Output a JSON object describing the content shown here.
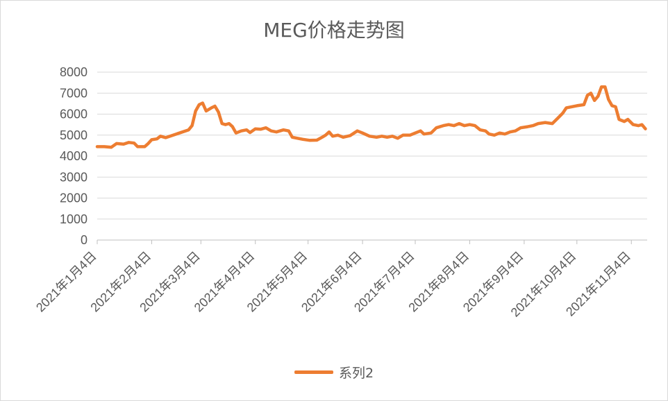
{
  "chart_data": {
    "type": "line",
    "title": "MEG价格走势图",
    "xlabel": "",
    "ylabel": "",
    "ylim": [
      0,
      8000
    ],
    "yticks": [
      "0",
      "1000",
      "2000",
      "3000",
      "4000",
      "5000",
      "6000",
      "7000",
      "8000"
    ],
    "xticks": [
      "2021年1月4日",
      "2021年2月4日",
      "2021年3月4日",
      "2021年4月4日",
      "2021年5月4日",
      "2021年6月4日",
      "2021年7月4日",
      "2021年8月4日",
      "2021年9月4日",
      "2021年10月4日",
      "2021年11月4日"
    ],
    "grid": true,
    "legend_position": "bottom",
    "series": [
      {
        "name": "系列2",
        "color": "#ed7d31",
        "points": [
          [
            "2021-01-04",
            4450
          ],
          [
            "2021-01-08",
            4450
          ],
          [
            "2021-01-12",
            4420
          ],
          [
            "2021-01-15",
            4600
          ],
          [
            "2021-01-19",
            4570
          ],
          [
            "2021-01-22",
            4650
          ],
          [
            "2021-01-25",
            4620
          ],
          [
            "2021-01-27",
            4450
          ],
          [
            "2021-01-31",
            4450
          ],
          [
            "2021-02-02",
            4600
          ],
          [
            "2021-02-04",
            4780
          ],
          [
            "2021-02-07",
            4820
          ],
          [
            "2021-02-09",
            4950
          ],
          [
            "2021-02-12",
            4880
          ],
          [
            "2021-02-18",
            5050
          ],
          [
            "2021-02-25",
            5250
          ],
          [
            "2021-02-27",
            5450
          ],
          [
            "2021-03-01",
            6150
          ],
          [
            "2021-03-03",
            6450
          ],
          [
            "2021-03-05",
            6530
          ],
          [
            "2021-03-07",
            6150
          ],
          [
            "2021-03-10",
            6300
          ],
          [
            "2021-03-12",
            6380
          ],
          [
            "2021-03-14",
            6100
          ],
          [
            "2021-03-16",
            5550
          ],
          [
            "2021-03-18",
            5500
          ],
          [
            "2021-03-20",
            5550
          ],
          [
            "2021-03-22",
            5400
          ],
          [
            "2021-03-24",
            5100
          ],
          [
            "2021-03-27",
            5200
          ],
          [
            "2021-03-30",
            5250
          ],
          [
            "2021-04-01",
            5120
          ],
          [
            "2021-04-04",
            5300
          ],
          [
            "2021-04-07",
            5280
          ],
          [
            "2021-04-10",
            5350
          ],
          [
            "2021-04-13",
            5200
          ],
          [
            "2021-04-16",
            5150
          ],
          [
            "2021-04-20",
            5250
          ],
          [
            "2021-04-23",
            5200
          ],
          [
            "2021-04-25",
            4900
          ],
          [
            "2021-04-28",
            4850
          ],
          [
            "2021-05-01",
            4800
          ],
          [
            "2021-05-05",
            4750
          ],
          [
            "2021-05-09",
            4760
          ],
          [
            "2021-05-12",
            4900
          ],
          [
            "2021-05-14",
            5000
          ],
          [
            "2021-05-16",
            5150
          ],
          [
            "2021-05-18",
            4950
          ],
          [
            "2021-05-21",
            5000
          ],
          [
            "2021-05-24",
            4900
          ],
          [
            "2021-05-28",
            4980
          ],
          [
            "2021-06-01",
            5200
          ],
          [
            "2021-06-04",
            5100
          ],
          [
            "2021-06-08",
            4950
          ],
          [
            "2021-06-12",
            4900
          ],
          [
            "2021-06-15",
            4950
          ],
          [
            "2021-06-18",
            4900
          ],
          [
            "2021-06-21",
            4950
          ],
          [
            "2021-06-24",
            4850
          ],
          [
            "2021-06-27",
            5000
          ],
          [
            "2021-07-01",
            5000
          ],
          [
            "2021-07-04",
            5100
          ],
          [
            "2021-07-07",
            5200
          ],
          [
            "2021-07-09",
            5050
          ],
          [
            "2021-07-13",
            5100
          ],
          [
            "2021-07-16",
            5350
          ],
          [
            "2021-07-20",
            5450
          ],
          [
            "2021-07-23",
            5500
          ],
          [
            "2021-07-26",
            5450
          ],
          [
            "2021-07-29",
            5550
          ],
          [
            "2021-08-01",
            5450
          ],
          [
            "2021-08-04",
            5500
          ],
          [
            "2021-08-07",
            5450
          ],
          [
            "2021-08-10",
            5250
          ],
          [
            "2021-08-13",
            5200
          ],
          [
            "2021-08-15",
            5050
          ],
          [
            "2021-08-18",
            5000
          ],
          [
            "2021-08-21",
            5100
          ],
          [
            "2021-08-24",
            5050
          ],
          [
            "2021-08-27",
            5150
          ],
          [
            "2021-08-30",
            5200
          ],
          [
            "2021-09-02",
            5350
          ],
          [
            "2021-09-06",
            5400
          ],
          [
            "2021-09-09",
            5450
          ],
          [
            "2021-09-12",
            5550
          ],
          [
            "2021-09-16",
            5600
          ],
          [
            "2021-09-20",
            5550
          ],
          [
            "2021-09-23",
            5800
          ],
          [
            "2021-09-26",
            6050
          ],
          [
            "2021-09-28",
            6300
          ],
          [
            "2021-10-01",
            6350
          ],
          [
            "2021-10-04",
            6400
          ],
          [
            "2021-10-08",
            6450
          ],
          [
            "2021-10-10",
            6900
          ],
          [
            "2021-10-12",
            7000
          ],
          [
            "2021-10-14",
            6650
          ],
          [
            "2021-10-16",
            6850
          ],
          [
            "2021-10-18",
            7300
          ],
          [
            "2021-10-20",
            7300
          ],
          [
            "2021-10-22",
            6700
          ],
          [
            "2021-10-24",
            6400
          ],
          [
            "2021-10-26",
            6350
          ],
          [
            "2021-10-28",
            5750
          ],
          [
            "2021-10-31",
            5650
          ],
          [
            "2021-11-02",
            5750
          ],
          [
            "2021-11-05",
            5500
          ],
          [
            "2021-11-08",
            5450
          ],
          [
            "2021-11-10",
            5500
          ],
          [
            "2021-11-12",
            5300
          ]
        ]
      }
    ]
  }
}
